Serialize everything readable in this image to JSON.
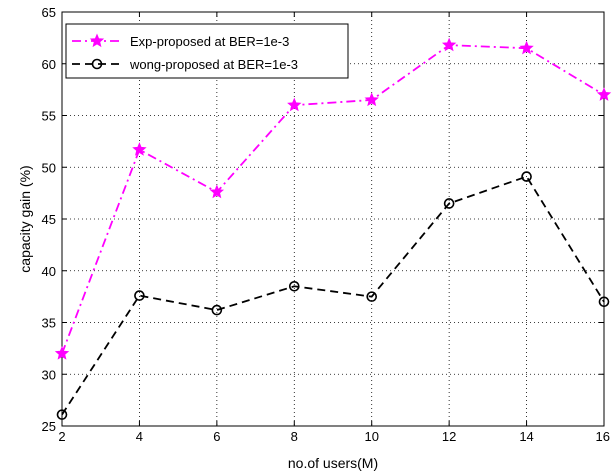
{
  "chart_data": {
    "type": "line",
    "title": "",
    "xlabel": "no.of users(M)",
    "ylabel": "capacity gain (%)",
    "x": [
      2,
      4,
      6,
      8,
      10,
      12,
      14,
      16
    ],
    "xlim": [
      2,
      16
    ],
    "ylim": [
      25,
      65
    ],
    "xticks": [
      2,
      4,
      6,
      8,
      10,
      12,
      14,
      16
    ],
    "yticks": [
      25,
      30,
      35,
      40,
      45,
      50,
      55,
      60,
      65
    ],
    "grid": true,
    "legend_position": "top-left",
    "series": [
      {
        "name": "Exp-proposed at BER=1e-3",
        "values": [
          32,
          51.7,
          47.6,
          56,
          56.5,
          61.8,
          61.5,
          57
        ],
        "color": "#ff00ff",
        "line_style": "dash-dot",
        "marker": "star"
      },
      {
        "name": "wong-proposed at BER=1e-3",
        "values": [
          26.1,
          37.6,
          36.2,
          38.5,
          37.5,
          46.5,
          49.1,
          37
        ],
        "color": "#000000",
        "line_style": "dashed",
        "marker": "circle"
      }
    ]
  }
}
